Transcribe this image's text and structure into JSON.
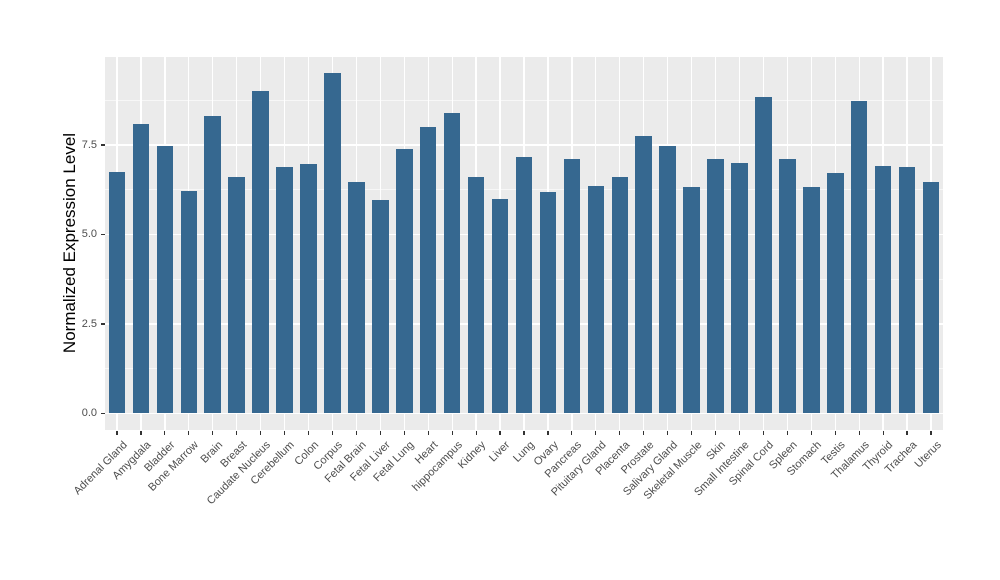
{
  "chart_data": {
    "type": "bar",
    "title": "",
    "xlabel": "",
    "ylabel": "Normalized Expression Level",
    "categories": [
      "Adrenal Gland",
      "Amygdala",
      "Bladder",
      "Bone Marrow",
      "Brain",
      "Breast",
      "Caudate Nucleus",
      "Cerebellum",
      "Colon",
      "Corpus",
      "Fetal Brain",
      "Fetal Liver",
      "Fetal Lung",
      "Heart",
      "hippocampus",
      "Kidney",
      "Liver",
      "Lung",
      "Ovary",
      "Pancreas",
      "Pituitary Gland",
      "Placenta",
      "Prostate",
      "Salivary Gland",
      "Skeletal Muscle",
      "Skin",
      "Small Intestine",
      "Spinal Cord",
      "Spleen",
      "Stomach",
      "Testis",
      "Thalamus",
      "Thyroid",
      "Trachea",
      "Uterus"
    ],
    "values": [
      6.74,
      8.09,
      7.47,
      6.22,
      8.31,
      6.6,
      9.0,
      6.89,
      6.96,
      9.5,
      6.46,
      5.95,
      7.39,
      8.0,
      8.39,
      6.61,
      5.99,
      7.16,
      6.19,
      7.1,
      6.35,
      6.61,
      7.76,
      7.48,
      6.33,
      7.12,
      7.0,
      8.85,
      7.11,
      6.33,
      6.71,
      8.74,
      6.91,
      6.89,
      6.46
    ],
    "ylim": [
      0,
      10
    ],
    "ytick_values": [
      0,
      2.5,
      5,
      7.5
    ],
    "ytick_labels": [
      "0.0",
      "2.5",
      "5.0",
      "7.5"
    ],
    "minor_tick_step": 1.25,
    "grid": "horizontal major+minor, vertical major per category",
    "legend_position": "none",
    "x_label_angle": 45,
    "colors": {
      "bar": "#366890",
      "panel_bg": "#EBEBEB",
      "grid_major": "#FFFFFF",
      "grid_minor": "rgba(255,255,255,0.62)",
      "tick_label": "#4D4D4D",
      "axis_title": "#000000",
      "tick_mark": "#333333",
      "figure_bg": "#FFFFFF"
    }
  }
}
